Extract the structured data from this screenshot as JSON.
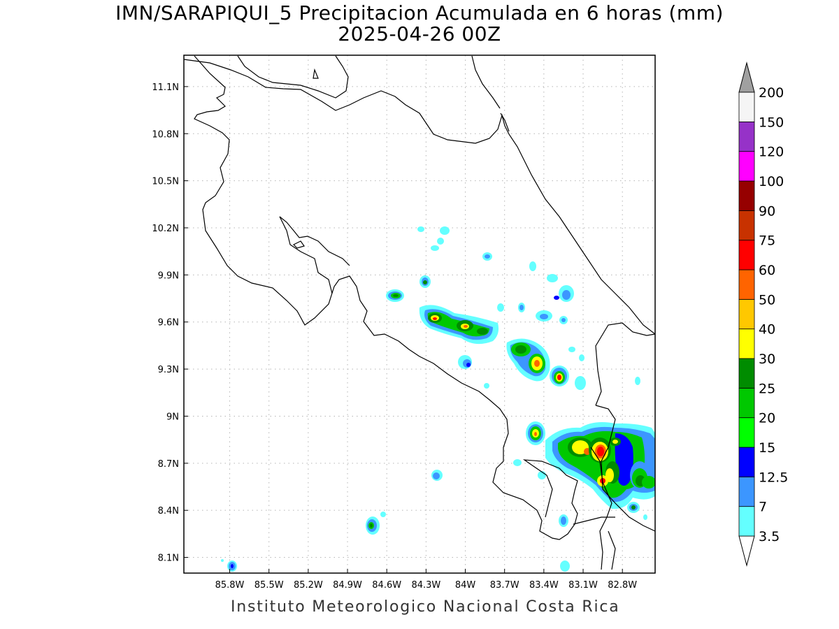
{
  "title_line1": "IMN/SARAPIQUI_5 Precipitacion Acumulada en 6 horas (mm)",
  "title_line2": "2025-04-26 00Z",
  "footer": "Instituto Meteorologico Nacional Costa Rica",
  "map": {
    "lon_range": [
      -86.15,
      -82.55
    ],
    "lat_range": [
      8.0,
      11.3
    ],
    "x_ticks": [
      "85.8W",
      "85.5W",
      "85.2W",
      "84.9W",
      "84.6W",
      "84.3W",
      "84W",
      "83.7W",
      "83.4W",
      "83.1W",
      "82.8W"
    ],
    "x_tick_values": [
      -85.8,
      -85.5,
      -85.2,
      -84.9,
      -84.6,
      -84.3,
      -84.0,
      -83.7,
      -83.4,
      -83.1,
      -82.8
    ],
    "y_ticks": [
      "8.1N",
      "8.4N",
      "8.7N",
      "9N",
      "9.3N",
      "9.6N",
      "9.9N",
      "10.2N",
      "10.5N",
      "10.8N",
      "11.1N"
    ],
    "y_tick_values": [
      8.1,
      8.4,
      8.7,
      9.0,
      9.3,
      9.6,
      9.9,
      10.2,
      10.5,
      10.8,
      11.1
    ],
    "gridlines": "dotted"
  },
  "colorbar": {
    "labels": [
      "3.5",
      "7",
      "12.5",
      "15",
      "20",
      "25",
      "30",
      "40",
      "50",
      "60",
      "75",
      "90",
      "100",
      "120",
      "150",
      "200"
    ],
    "colors": [
      "#64ffff",
      "#3c96ff",
      "#0000ff",
      "#00ff00",
      "#00c800",
      "#008c00",
      "#ffff00",
      "#ffc800",
      "#ff6400",
      "#ff0000",
      "#c83200",
      "#960000",
      "#ff00ff",
      "#9632c8",
      "#f5f5f5"
    ],
    "under_color": "#ffffff",
    "over_color": "#a0a0a0"
  },
  "colors": {
    "coastline": "#000000",
    "gridline": "#b4b4b4",
    "frame": "#000000"
  }
}
